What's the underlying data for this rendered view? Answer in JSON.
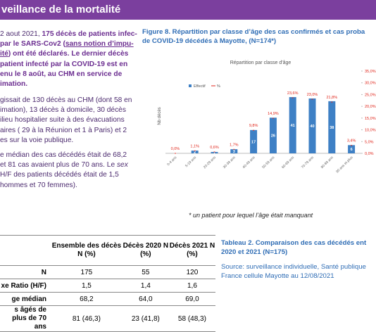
{
  "header": {
    "title": "veillance de la mortalité"
  },
  "left_text": {
    "p1": [
      [
        "2 aout 2021, ",
        "175 décès de patients infec-"
      ],
      [
        "par le SARS-Cov2 (",
        "sans notion d’impu-"
      ],
      [
        "ité",
        ") ont été déclarés. Le dernier décès"
      ],
      [
        "patient infecté par la COVID-19 est en"
      ],
      [
        "enu le 8 août, au CHM en service de"
      ],
      [
        "imation."
      ]
    ],
    "p2": [
      "gissait de 130 décès au CHM (dont 58 en",
      "imation), 13 décès à domicile, 30 décès",
      "ilieu hospitalier suite à des évacuations",
      "aires ( 29 à la Réunion et 1 à Paris) et 2",
      "es sur la voie publique."
    ],
    "p3": [
      "e médian des cas décédés était de 68,2",
      [
        "et 81 cas avaient plus de 70 ans. Le ",
        "sex"
      ],
      "H/F des patients décédés était de 1,5",
      "hommes et 70 femmes)."
    ]
  },
  "figure": {
    "caption": [
      "Figure 8. Répartition par classe d’âge des cas confirmés et cas proba",
      "de COVID-19 décédés à Mayotte, (N=174*)"
    ],
    "footnote": "* un patient pour lequel l’âge était manquant"
  },
  "chart_data": {
    "type": "bar",
    "title": "Répartition par classe d'âge",
    "y_label": "Nb décès",
    "categories": [
      "0-4 ans",
      "5-19 ans",
      "20-29 ans",
      "30-39 ans",
      "40-49 ans",
      "50-59 ans",
      "60-69 ans",
      "70-79 ans",
      "80-89 ans",
      "90 ans et plus"
    ],
    "series": [
      {
        "name": "Effectif",
        "color": "#3e80c5",
        "values": [
          0,
          2,
          1,
          3,
          17,
          26,
          41,
          40,
          38,
          6
        ]
      },
      {
        "name": "%",
        "color": "#e0261b",
        "axis": "y2",
        "values": [
          0.0,
          1.1,
          0.6,
          1.7,
          9.8,
          14.9,
          23.6,
          23.0,
          21.8,
          3.4
        ],
        "value_labels": [
          "0,0%",
          "1,1%",
          "0,6%",
          "1,7%",
          "9,8%",
          "14,9%",
          "23,6%",
          "23,0%",
          "21,8%",
          "3,4%"
        ]
      }
    ],
    "ylim": [
      0,
      60
    ],
    "y2lim": [
      0,
      35
    ],
    "y2ticks": [
      {
        "value": 0,
        "label": "0,0%"
      },
      {
        "value": 5,
        "label": "5,0%"
      },
      {
        "value": 10,
        "label": "10,0%"
      },
      {
        "value": 15,
        "label": "15,0%"
      },
      {
        "value": 20,
        "label": "20,0%"
      },
      {
        "value": 25,
        "label": "25,0%"
      },
      {
        "value": 30,
        "label": "30,0%"
      },
      {
        "value": 35,
        "label": "35,0%"
      }
    ]
  },
  "table": {
    "header": [
      "Ensemble des décès N (%)",
      "Décès 2020 N (%)",
      "Décès 2021 N (%)"
    ],
    "rows": [
      [
        "N",
        "175",
        "55",
        "120"
      ],
      [
        "xe Ratio (H/F)",
        "1,5",
        "1,4",
        "1,6"
      ],
      [
        "ge médian",
        "68,2",
        "64,0",
        "69,0"
      ],
      [
        "s âgés de plus de 70 ans",
        "81 (46,3)",
        "23 (41,8)",
        "58 (48,3)"
      ]
    ],
    "caption": [
      "Tableau 2. Comparaison des cas décédés ent",
      "2020 et 2021 (N=175)"
    ],
    "source": [
      "Source: surveillance individuelle, Santé publique",
      "France cellule Mayotte au 12/08/2021"
    ]
  }
}
